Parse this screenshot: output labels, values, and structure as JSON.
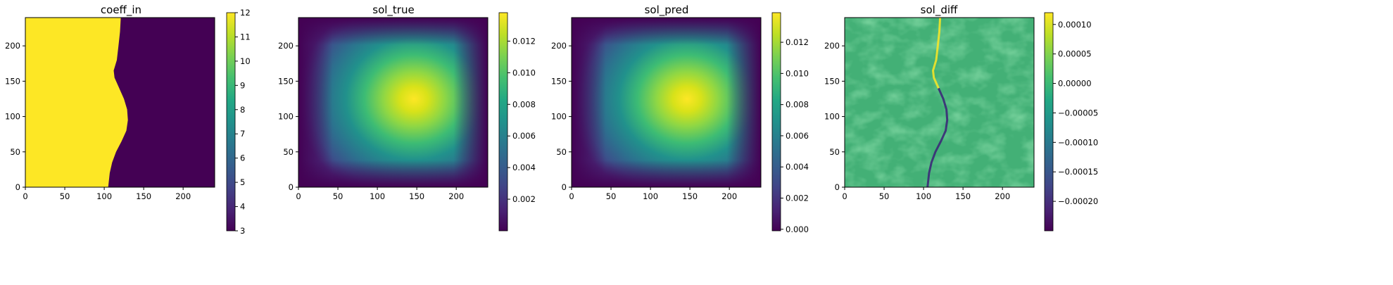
{
  "chart_data": [
    {
      "type": "heatmap",
      "title": "coeff_in",
      "x_ticks": [
        "0",
        "50",
        "100",
        "150",
        "200"
      ],
      "y_ticks": [
        "0",
        "50",
        "100",
        "150",
        "200"
      ],
      "xlim": [
        0,
        240
      ],
      "ylim": [
        0,
        240
      ],
      "field": "coefficient two-region map: value 12 for x left of interface, 3 to the right",
      "interface_x": [
        [
          0,
          105
        ],
        [
          20,
          107
        ],
        [
          35,
          110
        ],
        [
          50,
          115
        ],
        [
          65,
          122
        ],
        [
          80,
          128
        ],
        [
          95,
          130
        ],
        [
          110,
          129
        ],
        [
          125,
          125
        ],
        [
          140,
          119
        ],
        [
          155,
          113
        ],
        [
          165,
          112
        ],
        [
          180,
          116
        ],
        [
          200,
          118
        ],
        [
          220,
          120
        ],
        [
          240,
          121
        ]
      ],
      "region_values": {
        "left": 12,
        "right": 3
      },
      "colorbar": {
        "min": 3,
        "max": 12,
        "ticks": [
          "3",
          "4",
          "5",
          "6",
          "7",
          "8",
          "9",
          "10",
          "11",
          "12"
        ]
      }
    },
    {
      "type": "heatmap",
      "title": "sol_true",
      "x_ticks": [
        "0",
        "50",
        "100",
        "150",
        "200"
      ],
      "y_ticks": [
        "0",
        "50",
        "100",
        "150",
        "200"
      ],
      "xlim": [
        0,
        240
      ],
      "ylim": [
        0,
        240
      ],
      "peak": {
        "x": 163,
        "y": 125,
        "value": 0.0138
      },
      "colorbar": {
        "min": 0.0,
        "max": 0.0138,
        "ticks": [
          "0.002",
          "0.004",
          "0.006",
          "0.008",
          "0.010",
          "0.012"
        ]
      }
    },
    {
      "type": "heatmap",
      "title": "sol_pred",
      "x_ticks": [
        "0",
        "50",
        "100",
        "150",
        "200"
      ],
      "y_ticks": [
        "0",
        "50",
        "100",
        "150",
        "200"
      ],
      "xlim": [
        0,
        240
      ],
      "ylim": [
        0,
        240
      ],
      "peak": {
        "x": 163,
        "y": 125,
        "value": 0.0138
      },
      "colorbar": {
        "min": -0.0001,
        "max": 0.0139,
        "ticks": [
          "0.000",
          "0.002",
          "0.004",
          "0.006",
          "0.008",
          "0.010",
          "0.012"
        ]
      }
    },
    {
      "type": "heatmap",
      "title": "sol_diff",
      "x_ticks": [
        "0",
        "50",
        "100",
        "150",
        "200"
      ],
      "y_ticks": [
        "0",
        "50",
        "100",
        "150",
        "200"
      ],
      "xlim": [
        0,
        240
      ],
      "ylim": [
        0,
        240
      ],
      "colorbar": {
        "min": -0.00025,
        "max": 0.00012,
        "ticks": [
          "0.00010",
          "0.00005",
          "0.00000",
          "−0.00005",
          "−0.00010",
          "−0.00015",
          "−0.00020"
        ]
      }
    }
  ],
  "colormap": "viridis"
}
